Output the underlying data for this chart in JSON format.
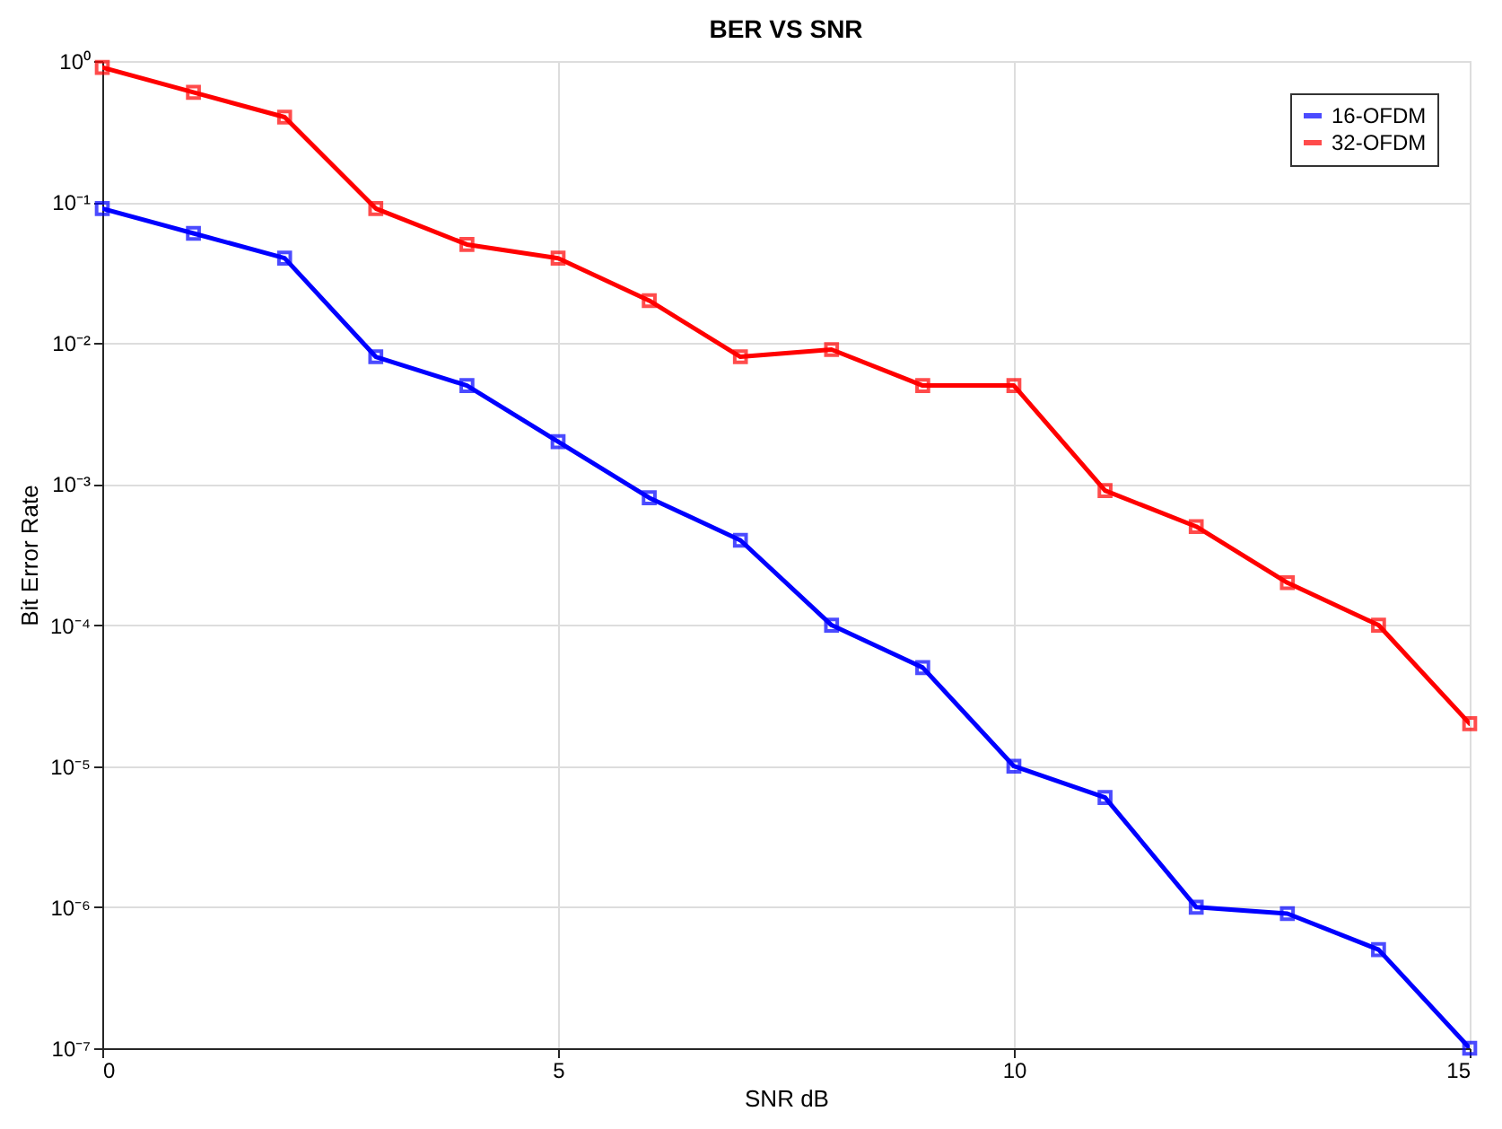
{
  "chart_data": {
    "type": "line",
    "title": "BER VS SNR",
    "xlabel": "SNR dB",
    "ylabel": "Bit Error Rate",
    "x": [
      0,
      1,
      2,
      3,
      4,
      5,
      6,
      7,
      8,
      9,
      10,
      11,
      12,
      13,
      14,
      15
    ],
    "series": [
      {
        "name": "16-OFDM",
        "color": "#0000ff",
        "values": [
          0.09,
          0.06,
          0.04,
          0.008,
          0.005,
          0.002,
          0.0008,
          0.0004,
          0.0001,
          5e-05,
          1e-05,
          6e-06,
          1e-06,
          9e-07,
          5e-07,
          1e-07
        ]
      },
      {
        "name": "32-OFDM",
        "color": "#ff0000",
        "values": [
          0.9,
          0.6,
          0.4,
          0.09,
          0.05,
          0.04,
          0.02,
          0.008,
          0.009,
          0.005,
          0.005,
          0.0009,
          0.0005,
          0.0002,
          0.0001,
          2e-05
        ]
      }
    ],
    "xlim": [
      0,
      15
    ],
    "xticks": [
      0,
      5,
      10,
      15
    ],
    "ylim": [
      1e-07,
      1
    ],
    "yticks": [
      {
        "value": 1e-07,
        "label": "10⁻⁷"
      },
      {
        "value": 1e-06,
        "label": "10⁻⁶"
      },
      {
        "value": 1e-05,
        "label": "10⁻⁵"
      },
      {
        "value": 0.0001,
        "label": "10⁻⁴"
      },
      {
        "value": 0.001,
        "label": "10⁻³"
      },
      {
        "value": 0.01,
        "label": "10⁻²"
      },
      {
        "value": 0.1,
        "label": "10⁻¹"
      },
      {
        "value": 1,
        "label": "10⁰"
      }
    ],
    "log": "y",
    "grid": true,
    "legend": "top right",
    "marker": "square",
    "line_style": "solid"
  }
}
